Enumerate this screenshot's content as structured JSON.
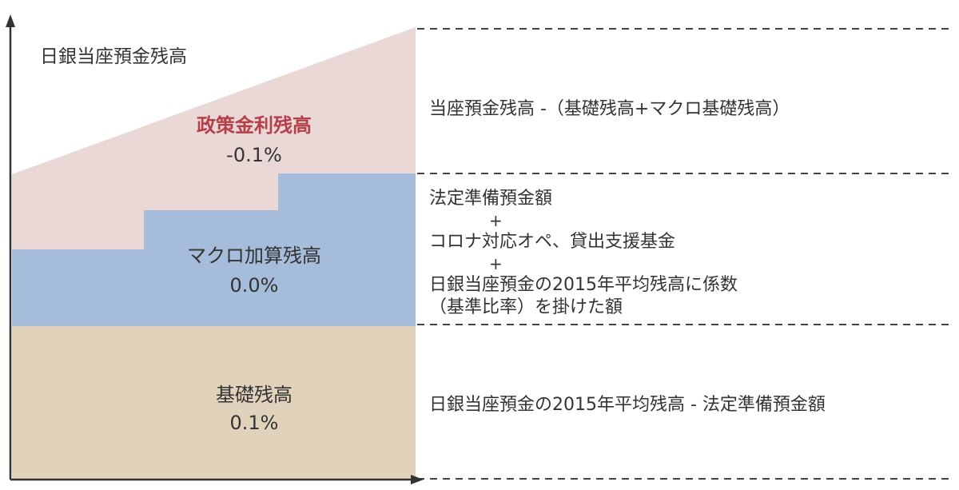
{
  "colors": {
    "policy_rate": "#e9d8d6",
    "macro": "#a6bcdb",
    "basic": "#e1d3bb",
    "policy_label": "#b5404a",
    "axis": "#333333",
    "dash": "#444444"
  },
  "y_axis_label": "日銀当座預金残高",
  "layers": {
    "policy_rate": {
      "name": "政策金利残高",
      "rate": "-0.1%"
    },
    "macro": {
      "name": "マクロ加算残高",
      "rate": "0.0%"
    },
    "basic": {
      "name": "基礎残高",
      "rate": "0.1%"
    }
  },
  "descriptions": {
    "policy_rate": "当座預金残高 -（基礎残高+マクロ基礎残高）",
    "macro": {
      "line1": "法定準備預金額",
      "plus1": "+",
      "line2": "コロナ対応オペ、貸出支援基金",
      "plus2": "+",
      "line3": "日銀当座預金の2015年平均残高に係数",
      "line4": "（基準比率）を掛けた額"
    },
    "basic": "日銀当座預金の2015年平均残高 - 法定準備預金額"
  }
}
